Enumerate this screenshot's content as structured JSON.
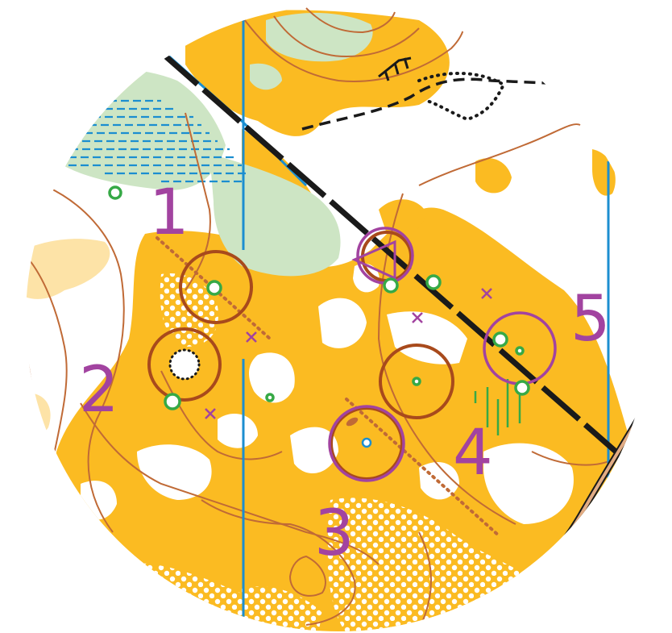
{
  "map": {
    "type": "orienteering-map-excerpt",
    "control_numbers": [
      "1",
      "2",
      "3",
      "4",
      "5"
    ],
    "course_color": "#a243a0",
    "colors": {
      "open_land_yellow": "#fbbb22",
      "rough_open_light": "#fde3a7",
      "green_vegetation": "#cde5c4",
      "contour_brown": "#c06a36",
      "circle_brown": "#a84a1c",
      "water_blue": "#1b8ed0",
      "track_black": "#1a1a1a",
      "feature_green": "#36a946",
      "road_fill": "#e2ac84"
    },
    "icons": [
      "start-triangle-icon",
      "control-circle-icon",
      "green-feature-ring-icon",
      "cross-marker-icon",
      "cliff-icon",
      "marsh-icon"
    ]
  }
}
